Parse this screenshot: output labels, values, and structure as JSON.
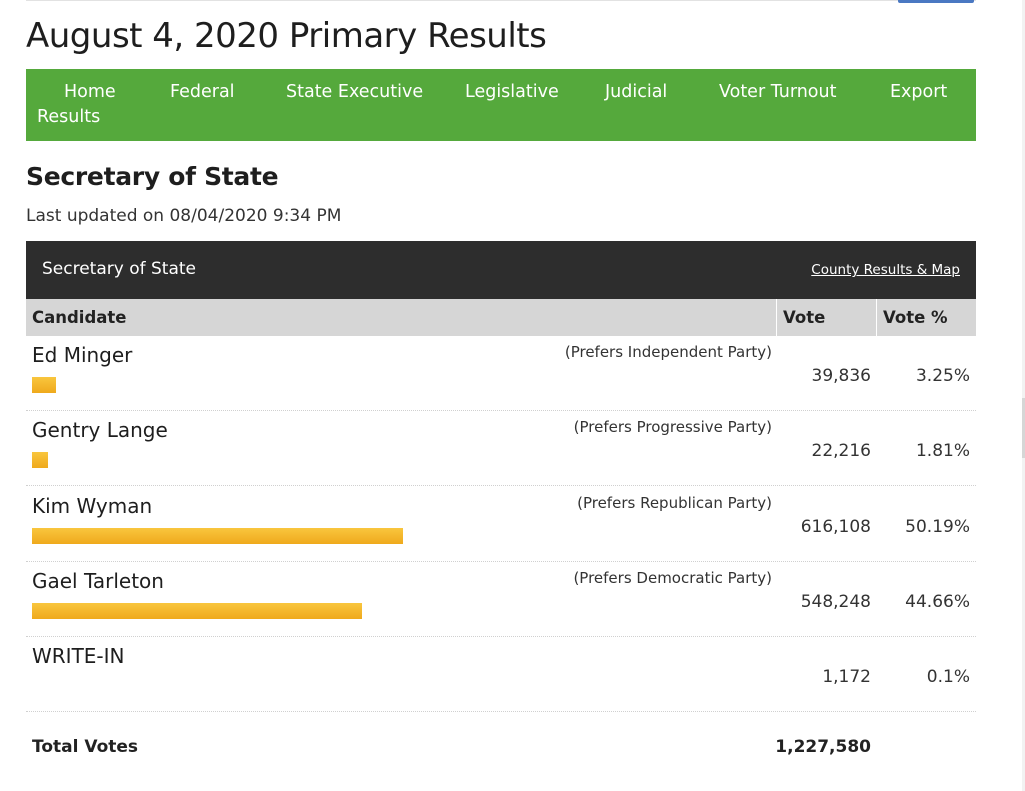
{
  "page": {
    "title": "August 4, 2020 Primary Results"
  },
  "nav": {
    "items": [
      {
        "label_line1": "Home",
        "label_line2": "Results"
      },
      {
        "label_line1": "Federal"
      },
      {
        "label_line1": "State Executive"
      },
      {
        "label_line1": "Legislative"
      },
      {
        "label_line1": "Judicial"
      },
      {
        "label_line1": "Voter Turnout"
      },
      {
        "label_line1": "Export"
      }
    ]
  },
  "section": {
    "title": "Secretary of State",
    "last_updated": "Last updated on 08/04/2020 9:34 PM"
  },
  "race": {
    "name": "Secretary of State",
    "county_link": "County Results & Map",
    "columns": {
      "candidate": "Candidate",
      "vote": "Vote",
      "vote_pct": "Vote %"
    },
    "bar_color": "#f5b82e",
    "rows": [
      {
        "candidate": "Ed Minger",
        "party": "(Prefers Independent Party)",
        "votes": "39,836",
        "pct": "3.25%",
        "share": 0.0325
      },
      {
        "candidate": "Gentry Lange",
        "party": "(Prefers Progressive Party)",
        "votes": "22,216",
        "pct": "1.81%",
        "share": 0.0181
      },
      {
        "candidate": "Kim Wyman",
        "party": "(Prefers Republican Party)",
        "votes": "616,108",
        "pct": "50.19%",
        "share": 0.5019
      },
      {
        "candidate": "Gael Tarleton",
        "party": "(Prefers Democratic Party)",
        "votes": "548,248",
        "pct": "44.66%",
        "share": 0.4466
      },
      {
        "candidate": "WRITE-IN",
        "party": "",
        "votes": "1,172",
        "pct": "0.1%",
        "share": 0.001
      }
    ],
    "total_label": "Total Votes",
    "total_votes": "1,227,580"
  }
}
